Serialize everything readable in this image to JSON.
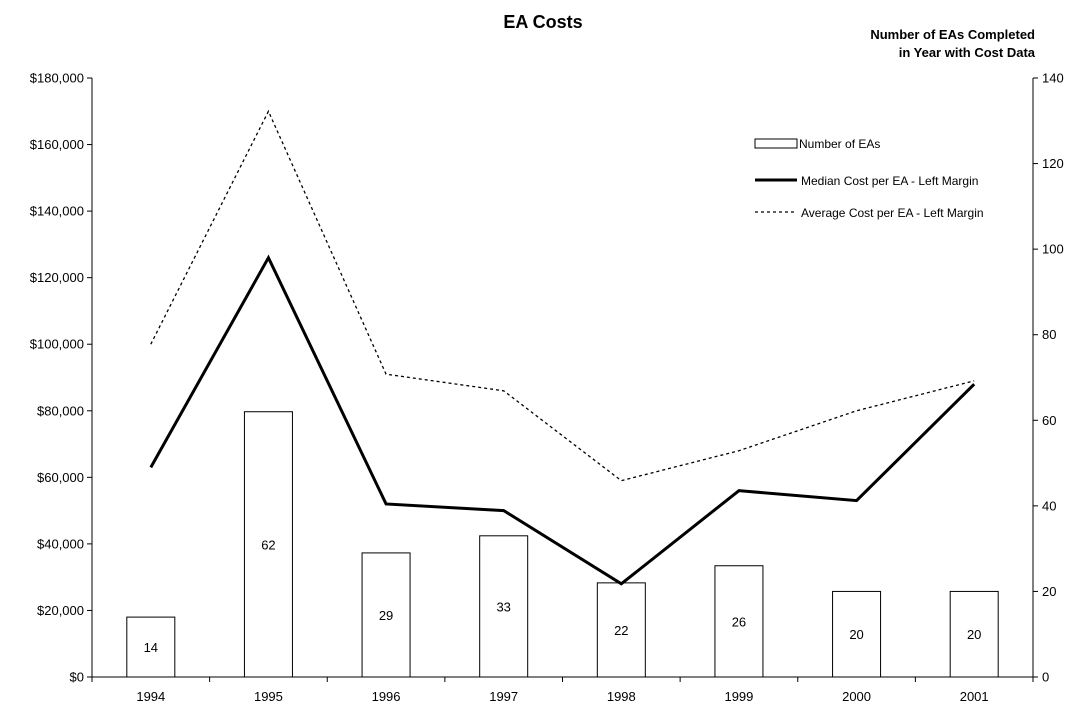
{
  "chart_data": {
    "type": "bar",
    "title": "EA Costs",
    "y2_title_lines": [
      "Number of EAs Completed",
      "in Year with Cost Data"
    ],
    "categories": [
      "1994",
      "1995",
      "1996",
      "1997",
      "1998",
      "1999",
      "2000",
      "2001"
    ],
    "y_left": {
      "ylim": [
        0,
        180000
      ],
      "tick_values": [
        0,
        20000,
        40000,
        60000,
        80000,
        100000,
        120000,
        140000,
        160000,
        180000
      ],
      "tick_labels": [
        "$0",
        "$20,000",
        "$40,000",
        "$60,000",
        "$80,000",
        "$100,000",
        "$120,000",
        "$140,000",
        "$160,000",
        "$180,000"
      ]
    },
    "y_right": {
      "ylim": [
        0,
        140
      ],
      "tick_values": [
        0,
        20,
        40,
        60,
        80,
        100,
        120,
        140
      ],
      "tick_labels": [
        "0",
        "20",
        "40",
        "60",
        "80",
        "100",
        "120",
        "140"
      ]
    },
    "series": [
      {
        "name": "Number of EAs",
        "kind": "bar",
        "axis": "right",
        "values": [
          14,
          62,
          29,
          33,
          22,
          26,
          20,
          20
        ],
        "labels": [
          "14",
          "62",
          "29",
          "33",
          "22",
          "26",
          "20",
          "20"
        ]
      },
      {
        "name": "Median Cost per EA - Left Margin",
        "kind": "line",
        "style": "solid",
        "axis": "left",
        "values": [
          63000,
          126000,
          52000,
          50000,
          28000,
          56000,
          53000,
          88000
        ]
      },
      {
        "name": "Average Cost per EA - Left Margin",
        "kind": "line",
        "style": "dotted",
        "axis": "left",
        "values": [
          100000,
          170000,
          91000,
          86000,
          59000,
          68000,
          80000,
          89000
        ]
      }
    ],
    "legend_position": "top-right",
    "grid": false
  }
}
